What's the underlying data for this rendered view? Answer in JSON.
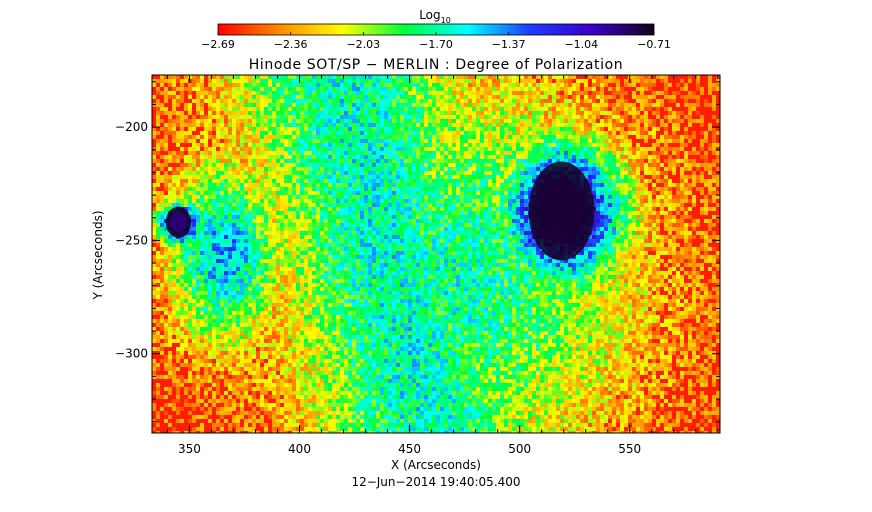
{
  "chart_data": {
    "type": "heatmap",
    "title": "Hinode SOT/SP − MERLIN : Degree of Polarization",
    "xlabel": "X (Arcseconds)",
    "ylabel": "Y (Arcseconds)",
    "xlim": [
      333,
      591
    ],
    "ylim": [
      -335,
      -177
    ],
    "xticks": [
      350,
      400,
      450,
      500,
      550
    ],
    "yticks": [
      -200,
      -250,
      -300
    ],
    "xtick_labels": [
      "350",
      "400",
      "450",
      "500",
      "550"
    ],
    "ytick_labels": [
      "−200",
      "−250",
      "−300"
    ],
    "timestamp": "12−Jun−2014 19:40:05.400",
    "colorbar": {
      "title_base": "Log",
      "title_sub": "10",
      "range": [
        -2.69,
        -0.71
      ],
      "ticks": [
        -2.69,
        -2.36,
        -2.03,
        -1.7,
        -1.37,
        -1.04,
        -0.71
      ],
      "tick_labels": [
        "−2.69",
        "−2.36",
        "−2.03",
        "−1.70",
        "−1.37",
        "−1.04",
        "−0.71"
      ],
      "colormap": [
        "#ff0000",
        "#ff8c00",
        "#ffff00",
        "#00ff3c",
        "#00ffff",
        "#1e3cff",
        "#3c00c8",
        "#14001e"
      ]
    },
    "features": [
      {
        "name": "sunspot",
        "x": 519,
        "y": -237,
        "rx": 13,
        "ry": 19,
        "value": -0.8
      },
      {
        "name": "pore",
        "x": 345,
        "y": -242,
        "rx": 5,
        "ry": 6,
        "value": -0.9
      },
      {
        "name": "plage-band",
        "x": 470,
        "y": -265,
        "rx": 40,
        "ry": 55,
        "value": -1.7
      }
    ]
  }
}
